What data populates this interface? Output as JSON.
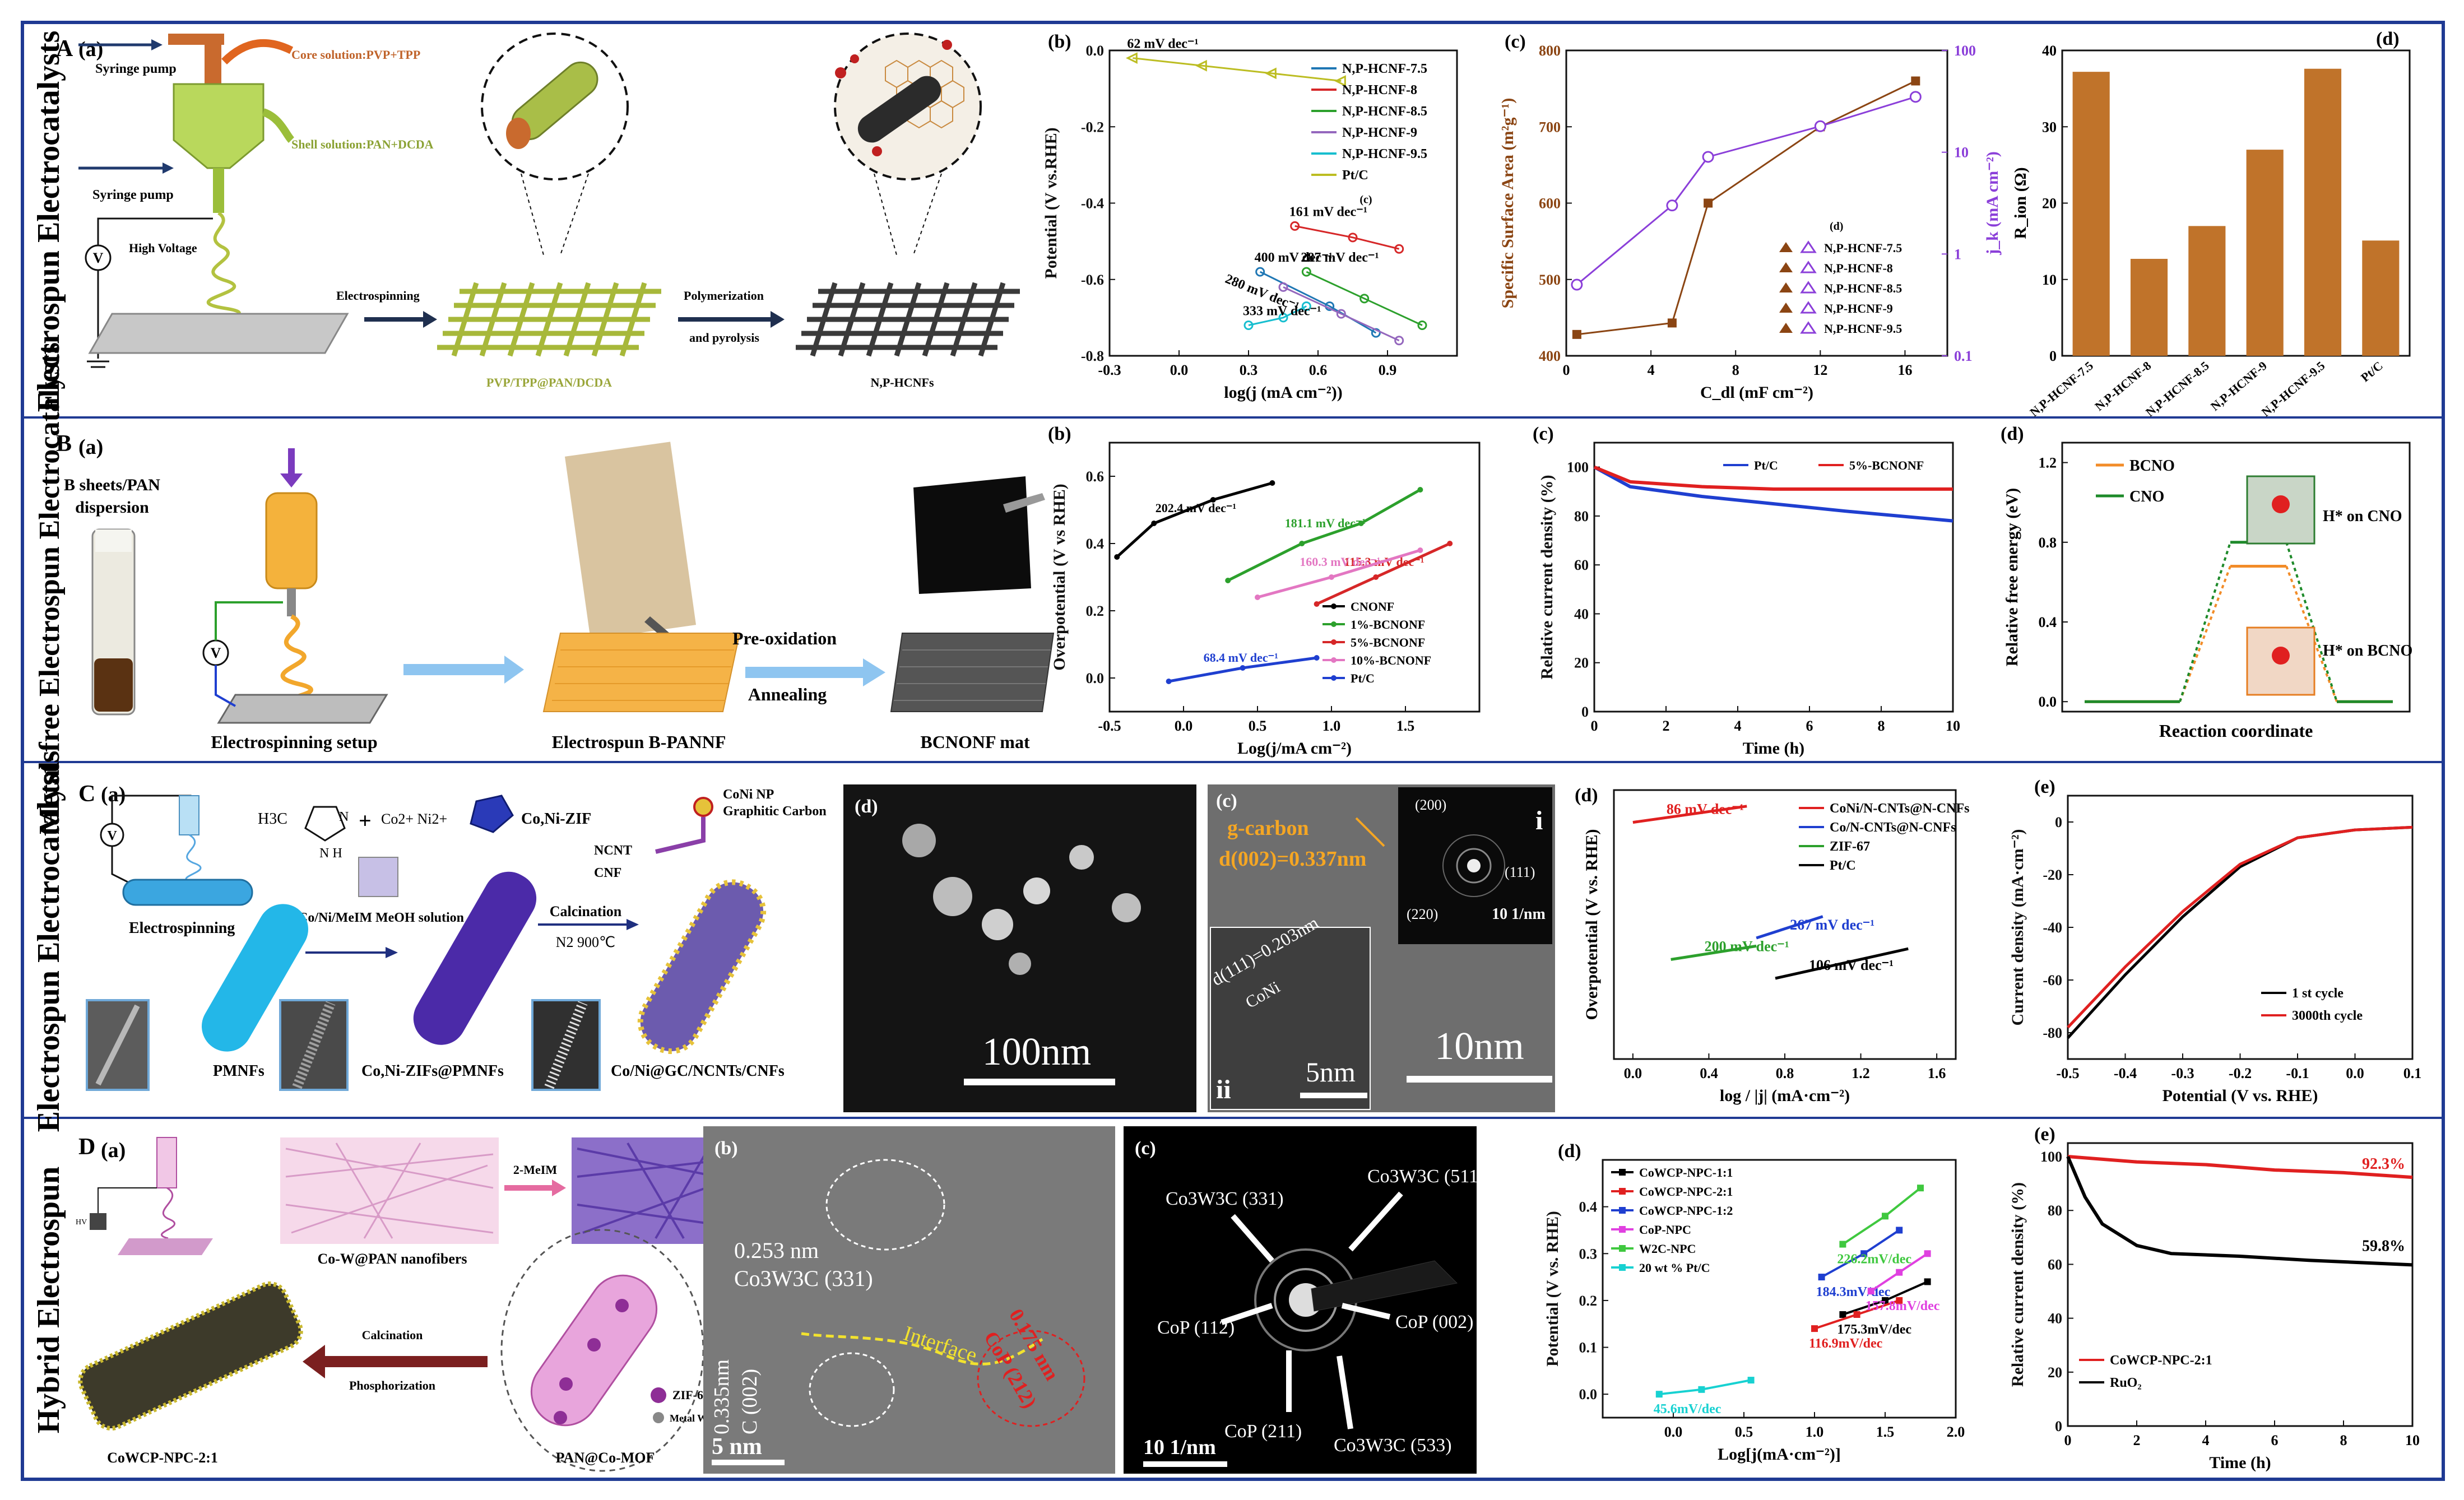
{
  "row_labels": {
    "A": "Electrospun Electrocatalysts",
    "B": "Metal-free Electrospun Electrocatalysts",
    "C": "Electrospun Electrocatalysts",
    "D": "Hybrid Electrospun"
  },
  "section_letters": [
    "A",
    "B",
    "C",
    "D"
  ],
  "colors": {
    "brown": "#C0732A",
    "purple": "#8B3FD9",
    "frame": "#1F3A93",
    "olive": "#B4C244"
  },
  "A": {
    "panel_a": {
      "letter": "(a)",
      "syringe_pump_1": "Syringe pump",
      "syringe_pump_2": "Syringe pump",
      "core": "Core solution:PVP+TPP",
      "shell": "Shell solution:PAN+DCDA",
      "high_voltage": "High Voltage",
      "electrospinning": "Electrospinning",
      "polymerization": "Polymerization",
      "pyrolysis": "and pyrolysis",
      "material1": "PVP/TPP@PAN/DCDA",
      "material2": "N,P-HCNFs"
    }
  },
  "B": {
    "panel_a": {
      "letter": "(a)",
      "dispersion": "B sheets/PAN dispersion",
      "setup": "Electrospinning setup",
      "nanofiber": "Electrospun B-PANNF",
      "preox": "Pre-oxidation",
      "anneal": "Annealing",
      "mat": "BCNONF mat"
    }
  },
  "C": {
    "panel_a": {
      "letter": "(a)",
      "electrospinning": "Electrospinning",
      "chem_methyl": "H3C",
      "chem_ions": "Co2+ Ni2+",
      "zif": "Co,Ni-ZIF",
      "solution": "Co/Ni/MeIM MeOH solution",
      "calcination": "Calcination",
      "conditions": "N2 900℃",
      "np": "CoNi NP",
      "gc": "Graphitic Carbon",
      "ncnt": "NCNT",
      "cnf": "CNF",
      "m1": "PMNFs",
      "m2": "Co,Ni-ZIFs@PMNFs",
      "m3": "Co/Ni@GC/NCNTs/CNFs"
    },
    "panel_b": {
      "letter": "(b)",
      "scale": "100nm"
    },
    "panel_c": {
      "letter": "(c)",
      "gcarbon": "g-carbon",
      "d002": "d(002)=0.337nm",
      "d111": "d(111)=0.203nm",
      "coni": "CoNi",
      "scale1": "5nm",
      "scale2": "10nm",
      "scale3": "10 1/nm",
      "i": "i",
      "ii": "ii",
      "r200": "(200)",
      "r111": "(111)",
      "r220": "(220)"
    }
  },
  "D": {
    "panel_a": {
      "letter": "(a)",
      "fibers": "Co-W@PAN nanofibers",
      "meim": "2-MeIM",
      "calc": "Calcination",
      "phos": "Phosphorization",
      "zif67": "ZIF-67",
      "metalw": "Metal W complexes",
      "m1": "CoWCP-NPC-2:1",
      "m2": "PAN@Co-MOF",
      "hv": "HV"
    },
    "panel_b": {
      "letter": "(b)",
      "d1": "0.253 nm",
      "p1": "Co3W3C (331)",
      "d2": "0.335nm",
      "p2": "C (002)",
      "interface": "Interface",
      "d3": "0.175 nm",
      "p3": "CoP (212)",
      "scale": "5 nm"
    },
    "panel_c": {
      "letter": "(c)",
      "r1": "Co3W3C (331)",
      "r2": "Co3W3C (511)",
      "r3": "CoP (112)",
      "r4": "CoP (002)",
      "r5": "CoP (211)",
      "r6": "Co3W3C (533)",
      "scale": "10 1/nm"
    }
  },
  "chart_data": [
    {
      "id": "A_b",
      "letter": "(b)",
      "type": "line",
      "xlabel": "log(j (mA cm⁻²))",
      "ylabel": "Potential (V vs.RHE)",
      "xlim": [
        -0.3,
        1.2
      ],
      "ylim": [
        -0.8,
        0.0
      ],
      "xticks": [
        "-0.3",
        "0.0",
        "0.3",
        "0.6",
        "0.9"
      ],
      "yticks": [
        "0.0",
        "-0.2",
        "-0.4",
        "-0.6",
        "-0.8"
      ],
      "series": [
        {
          "name": "N,P-HCNF-7.5",
          "color": "#1F77B4",
          "marker": "circle",
          "x": [
            0.35,
            0.65,
            0.85
          ],
          "y": [
            -0.58,
            -0.67,
            -0.74
          ],
          "tafel": "400 mV dec⁻¹"
        },
        {
          "name": "N,P-HCNF-8",
          "color": "#D62728",
          "marker": "circle",
          "x": [
            0.5,
            0.75,
            0.95
          ],
          "y": [
            -0.46,
            -0.49,
            -0.52
          ],
          "tafel": "161 mV dec⁻¹"
        },
        {
          "name": "N,P-HCNF-8.5",
          "color": "#2CA02C",
          "marker": "circle",
          "x": [
            0.55,
            0.8,
            1.05
          ],
          "y": [
            -0.58,
            -0.65,
            -0.72
          ],
          "tafel": "287 mV dec⁻¹"
        },
        {
          "name": "N,P-HCNF-9",
          "color": "#9467BD",
          "marker": "circle",
          "x": [
            0.45,
            0.7,
            0.95
          ],
          "y": [
            -0.62,
            -0.69,
            -0.76
          ],
          "tafel": ""
        },
        {
          "name": "N,P-HCNF-9.5",
          "color": "#17BECF",
          "marker": "circle",
          "x": [
            0.3,
            0.45,
            0.55
          ],
          "y": [
            -0.72,
            -0.7,
            -0.67
          ],
          "tafel": "333 mV dec⁻¹"
        },
        {
          "name": "Pt/C",
          "color": "#BCBD22",
          "marker": "triangle",
          "x": [
            -0.2,
            0.1,
            0.4,
            0.7
          ],
          "y": [
            -0.02,
            -0.04,
            -0.06,
            -0.08
          ],
          "tafel": "62 mV dec⁻¹"
        }
      ],
      "annotations": [
        "280 mV dec⁻¹",
        "(c)"
      ]
    },
    {
      "id": "A_c",
      "letter": "(c)",
      "type": "line",
      "xlabel": "C_dl (mF cm⁻²)",
      "ylabel": "Specific Surface Area (m²g⁻¹)",
      "y2label": "j_k (mA cm⁻²)",
      "xlim": [
        0,
        18
      ],
      "ylim": [
        400,
        800
      ],
      "y2lim_log": [
        0.1,
        100
      ],
      "xticks": [
        "0",
        "4",
        "8",
        "12",
        "16"
      ],
      "yticks": [
        "400",
        "500",
        "600",
        "700",
        "800"
      ],
      "y2ticks": [
        "0.1",
        "1",
        "10",
        "100"
      ],
      "series": [
        {
          "name": "Specific Surface Area",
          "color": "#8B4513",
          "x": [
            0.5,
            5,
            6.7,
            12,
            16.5
          ],
          "y": [
            428,
            443,
            600,
            700,
            760
          ]
        },
        {
          "name": "j_k",
          "color": "#8B3FD9",
          "x": [
            0.5,
            5,
            6.7,
            12,
            16.5
          ],
          "y2": [
            0.5,
            3,
            9,
            18,
            35
          ]
        }
      ],
      "legend": [
        "N,P-HCNF-7.5",
        "N,P-HCNF-8",
        "N,P-HCNF-8.5",
        "N,P-HCNF-9",
        "N,P-HCNF-9.5"
      ],
      "annotations": [
        "(d)"
      ]
    },
    {
      "id": "A_d",
      "letter": "(d)",
      "type": "bar",
      "ylabel": "R_ion (Ω)",
      "ylim": [
        0,
        40
      ],
      "yticks": [
        "0",
        "10",
        "20",
        "30",
        "40"
      ],
      "categories": [
        "N,P-HCNF-7.5",
        "N,P-HCNF-8",
        "N,P-HCNF-8.5",
        "N,P-HCNF-9",
        "N,P-HCNF-9.5",
        "Pt/C"
      ],
      "values": [
        37.2,
        12.7,
        17,
        27,
        37.6,
        15.1
      ]
    },
    {
      "id": "B_b",
      "letter": "(b)",
      "type": "line",
      "xlabel": "Log(j/mA cm⁻²)",
      "ylabel": "Overpotential (V vs RHE)",
      "xlim": [
        -0.5,
        2.0
      ],
      "ylim": [
        -0.1,
        0.7
      ],
      "xticks": [
        "-0.5",
        "0.0",
        "0.5",
        "1.0",
        "1.5"
      ],
      "yticks": [
        "0.0",
        "0.2",
        "0.4",
        "0.6"
      ],
      "series": [
        {
          "name": "CNONF",
          "color": "#000000",
          "x": [
            -0.45,
            -0.2,
            0.2,
            0.6
          ],
          "y": [
            0.36,
            0.46,
            0.53,
            0.58
          ],
          "tafel": "202.4 mV dec⁻¹"
        },
        {
          "name": "1%-BCNONF",
          "color": "#2CA02C",
          "x": [
            0.3,
            0.8,
            1.2,
            1.6
          ],
          "y": [
            0.29,
            0.4,
            0.46,
            0.56
          ],
          "tafel": "181.1 mV dec⁻¹"
        },
        {
          "name": "5%-BCNONF",
          "color": "#D62728",
          "x": [
            0.9,
            1.3,
            1.8
          ],
          "y": [
            0.22,
            0.3,
            0.4
          ],
          "tafel": "115.3 mV dec⁻¹"
        },
        {
          "name": "10%-BCNONF",
          "color": "#E377C2",
          "x": [
            0.5,
            1.0,
            1.6
          ],
          "y": [
            0.24,
            0.3,
            0.38
          ],
          "tafel": "160.3 mV dec⁻¹"
        },
        {
          "name": "Pt/C",
          "color": "#1F3FD0",
          "x": [
            -0.1,
            0.4,
            0.9
          ],
          "y": [
            -0.01,
            0.03,
            0.06
          ],
          "tafel": "68.4 mV dec⁻¹"
        }
      ]
    },
    {
      "id": "B_c",
      "letter": "(c)",
      "type": "line",
      "xlabel": "Time (h)",
      "ylabel": "Relative current density (%)",
      "xlim": [
        0,
        10
      ],
      "ylim": [
        0,
        110
      ],
      "xticks": [
        "0",
        "2",
        "4",
        "6",
        "8",
        "10"
      ],
      "yticks": [
        "0",
        "20",
        "40",
        "60",
        "80",
        "100"
      ],
      "series": [
        {
          "name": "Pt/C",
          "color": "#1F3FD0",
          "x": [
            0,
            1,
            3,
            5,
            7,
            10
          ],
          "y": [
            100,
            92,
            88,
            85,
            82,
            78
          ]
        },
        {
          "name": "5%-BCNONF",
          "color": "#E02020",
          "x": [
            0,
            1,
            3,
            5,
            7,
            10
          ],
          "y": [
            100,
            94,
            92,
            91,
            91,
            91
          ]
        }
      ]
    },
    {
      "id": "B_d",
      "letter": "(d)",
      "type": "line",
      "xlabel": "Reaction coordinate",
      "ylabel": "Relative free energy (eV)",
      "ylim": [
        -0.05,
        1.3
      ],
      "yticks": [
        "0.0",
        "0.4",
        "0.8",
        "1.2"
      ],
      "series": [
        {
          "name": "BCNO",
          "color": "#F28C28",
          "levels": [
            0,
            0.68,
            0
          ]
        },
        {
          "name": "CNO",
          "color": "#1E8A2A",
          "levels": [
            0,
            0.8,
            0
          ]
        }
      ],
      "annotations": [
        "H* on CNO",
        "H* on BCNO"
      ]
    },
    {
      "id": "C_d",
      "letter": "(d)",
      "type": "line",
      "xlabel": "log / |j| (mA·cm⁻²)",
      "ylabel": "Overpotential (V vs. RHE)",
      "xlim": [
        -0.1,
        1.7
      ],
      "xticks": [
        "0.0",
        "0.4",
        "0.8",
        "1.2",
        "1.6"
      ],
      "series": [
        {
          "name": "CoNi/N-CNTs@N-CNFs",
          "color": "#E02020",
          "x": [
            0,
            0.6
          ],
          "y": [
            0.88,
            0.94
          ],
          "tafel": "86 mV dec⁻¹"
        },
        {
          "name": "Co/N-CNTs@N-CNFs",
          "color": "#1F3FD0",
          "x": [
            0.65,
            1.0
          ],
          "y": [
            0.45,
            0.53
          ],
          "tafel": "267 mV dec⁻¹"
        },
        {
          "name": "ZIF-67",
          "color": "#2CA02C",
          "x": [
            0.2,
            0.65
          ],
          "y": [
            0.37,
            0.42
          ],
          "tafel": "200 mV dec⁻¹"
        },
        {
          "name": "Pt/C",
          "color": "#000000",
          "x": [
            0.75,
            1.45
          ],
          "y": [
            0.3,
            0.41
          ],
          "tafel": "106 mV dec⁻¹"
        }
      ]
    },
    {
      "id": "C_e",
      "letter": "(e)",
      "type": "line",
      "xlabel": "Potential (V vs. RHE)",
      "ylabel": "Current density (mA·cm⁻²)",
      "xlim": [
        -0.5,
        0.1
      ],
      "ylim": [
        -90,
        10
      ],
      "xticks": [
        "-0.5",
        "-0.4",
        "-0.3",
        "-0.2",
        "-0.1",
        "0.0",
        "0.1"
      ],
      "yticks": [
        "0",
        "-20",
        "-40",
        "-60",
        "-80"
      ],
      "series": [
        {
          "name": "1 st cycle",
          "color": "#000000",
          "x": [
            -0.5,
            -0.4,
            -0.3,
            -0.2,
            -0.1,
            0.0,
            0.1
          ],
          "y": [
            -82,
            -58,
            -36,
            -17,
            -6,
            -3,
            -2
          ]
        },
        {
          "name": "3000th cycle",
          "color": "#E02020",
          "x": [
            -0.5,
            -0.4,
            -0.3,
            -0.2,
            -0.1,
            0.0,
            0.1
          ],
          "y": [
            -78,
            -55,
            -34,
            -16,
            -6,
            -3,
            -2
          ]
        }
      ]
    },
    {
      "id": "D_d",
      "letter": "(d)",
      "type": "line",
      "xlabel": "Log[j(mA·cm⁻²)]",
      "ylabel": "Potential (V vs. RHE)",
      "xlim": [
        -0.5,
        2.0
      ],
      "ylim": [
        -0.05,
        0.5
      ],
      "xticks": [
        "0.0",
        "0.5",
        "1.0",
        "1.5",
        "2.0"
      ],
      "yticks": [
        "0.0",
        "0.1",
        "0.2",
        "0.3",
        "0.4"
      ],
      "series": [
        {
          "name": "CoWCP-NPC-1:1",
          "color": "#000000",
          "x": [
            1.2,
            1.5,
            1.8
          ],
          "y": [
            0.17,
            0.2,
            0.24
          ],
          "tafel": "175.3mV/dec"
        },
        {
          "name": "CoWCP-NPC-2:1",
          "color": "#E02020",
          "x": [
            1.0,
            1.3,
            1.6
          ],
          "y": [
            0.14,
            0.17,
            0.2
          ],
          "tafel": "116.9mV/dec"
        },
        {
          "name": "CoWCP-NPC-1:2",
          "color": "#1F3FD0",
          "x": [
            1.05,
            1.35,
            1.6
          ],
          "y": [
            0.25,
            0.3,
            0.35
          ],
          "tafel": "184.3mV/dec"
        },
        {
          "name": "CoP-NPC",
          "color": "#E040E0",
          "x": [
            1.4,
            1.6,
            1.8
          ],
          "y": [
            0.22,
            0.26,
            0.3
          ],
          "tafel": "157.8mV/dec"
        },
        {
          "name": "W2C-NPC",
          "color": "#3FC83F",
          "x": [
            1.2,
            1.5,
            1.75
          ],
          "y": [
            0.32,
            0.38,
            0.44
          ],
          "tafel": "226.2mV/dec"
        },
        {
          "name": "20 wt % Pt/C",
          "color": "#17D1D1",
          "x": [
            -0.1,
            0.2,
            0.55
          ],
          "y": [
            0.0,
            0.01,
            0.03
          ],
          "tafel": "45.6mV/dec"
        }
      ]
    },
    {
      "id": "D_e",
      "letter": "(e)",
      "type": "line",
      "xlabel": "Time (h)",
      "ylabel": "Relative current density (%)",
      "xlim": [
        0,
        10
      ],
      "ylim": [
        0,
        105
      ],
      "xticks": [
        "0",
        "2",
        "4",
        "6",
        "8",
        "10"
      ],
      "yticks": [
        "0",
        "20",
        "40",
        "60",
        "80",
        "100"
      ],
      "series": [
        {
          "name": "CoWCP-NPC-2:1",
          "color": "#E02020",
          "x": [
            0,
            2,
            4,
            6,
            8,
            10
          ],
          "y": [
            100,
            98,
            97,
            95,
            94,
            92.3
          ]
        },
        {
          "name": "RuO₂",
          "color": "#000000",
          "x": [
            0,
            0.5,
            1,
            2,
            3,
            5,
            7,
            10
          ],
          "y": [
            100,
            85,
            75,
            67,
            64,
            63,
            61.5,
            59.8
          ]
        }
      ],
      "annotations": [
        "92.3%",
        "59.8%"
      ]
    }
  ]
}
